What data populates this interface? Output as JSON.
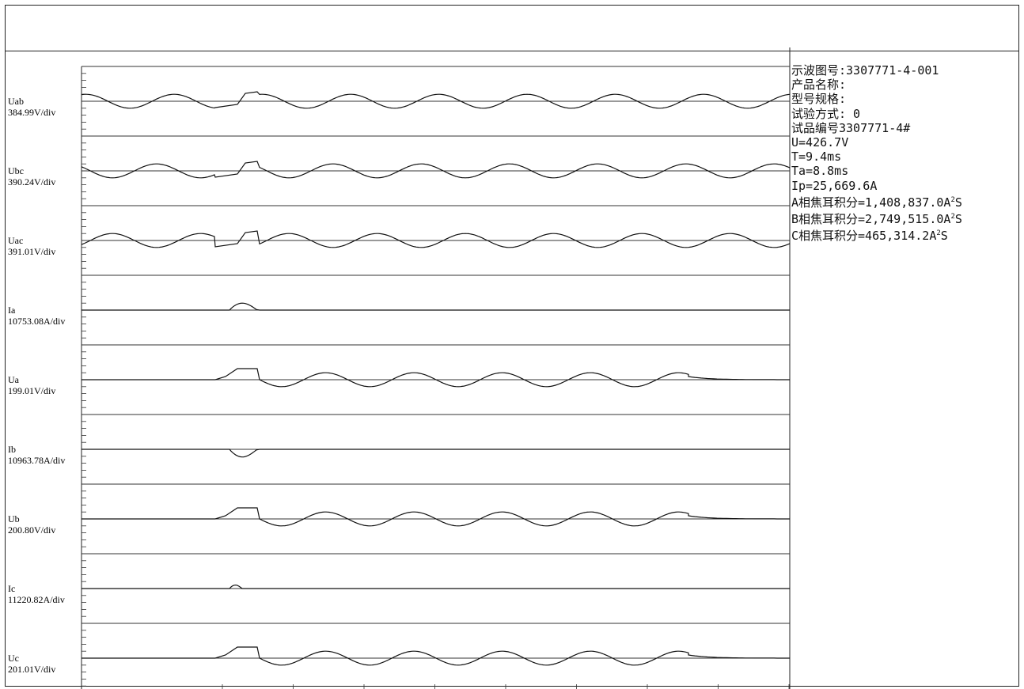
{
  "chart_data": {
    "type": "line",
    "channels": [
      {
        "name": "Uab",
        "scale": "384.99V/div",
        "kind": "voltage",
        "amplitude_div": 0.2,
        "pre_fault": true,
        "end": "ac"
      },
      {
        "name": "Ubc",
        "scale": "390.24V/div",
        "kind": "voltage",
        "amplitude_div": 0.2,
        "pre_fault": true,
        "end": "ac"
      },
      {
        "name": "Uac",
        "scale": "391.01V/div",
        "kind": "voltage",
        "amplitude_div": 0.2,
        "pre_fault": true,
        "end": "ac"
      },
      {
        "name": "Ia",
        "scale": "10753.08A/div",
        "kind": "current",
        "sign": 1,
        "amplitude_div": 0.2
      },
      {
        "name": "Ua",
        "scale": "199.01V/div",
        "kind": "recovery",
        "amplitude_div": 0.2,
        "end": "decay"
      },
      {
        "name": "Ib",
        "scale": "10963.78A/div",
        "kind": "current",
        "sign": -1,
        "amplitude_div": 0.22
      },
      {
        "name": "Ub",
        "scale": "200.80V/div",
        "kind": "recovery",
        "amplitude_div": 0.2,
        "end": "decay"
      },
      {
        "name": "Ic",
        "scale": "11220.82A/div",
        "kind": "current",
        "sign": 1,
        "amplitude_div": 0.1
      },
      {
        "name": "Uc",
        "scale": "201.01V/div",
        "kind": "recovery",
        "amplitude_div": 0.2,
        "end": "decay"
      }
    ],
    "grid": true,
    "legend": "none"
  },
  "info": {
    "record_no": "示波图号:3307771-4-001",
    "product_name": "产品名称:",
    "model_spec": "型号规格:",
    "test_mode": "试验方式: 0",
    "sample_no": "试品编号3307771-4#",
    "u": "U=426.7V",
    "t": "T=9.4ms",
    "ta": "Ta=8.8ms",
    "ip": "Ip=25,669.6A",
    "a_joule_text": "A相焦耳积分=1,408,837.0A",
    "b_joule_text": "B相焦耳积分=2,749,515.0A",
    "c_joule_text": "C相焦耳积分=465,314.2A",
    "unit_sup": "2",
    "unit_tail": "S"
  }
}
